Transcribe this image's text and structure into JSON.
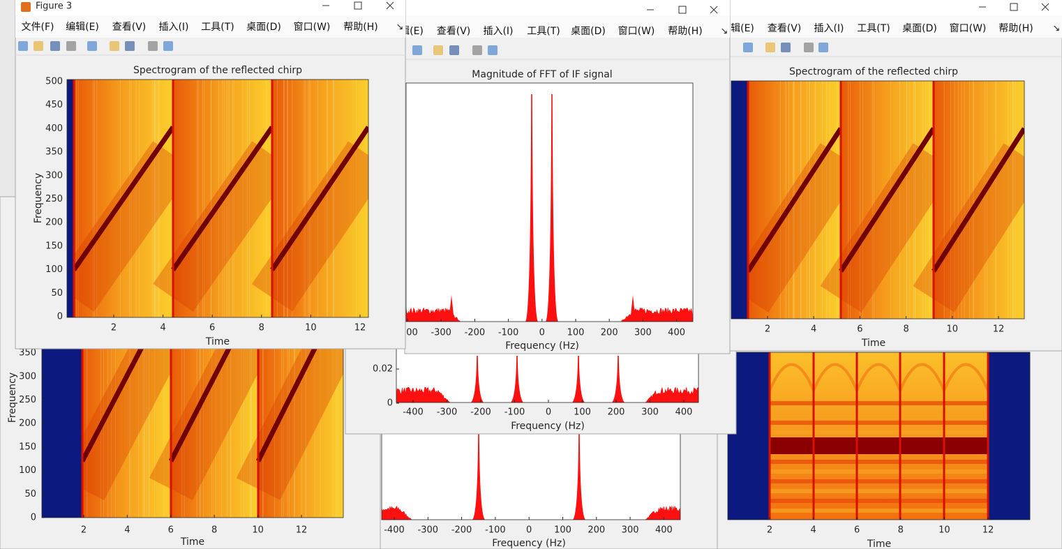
{
  "figures": [
    {
      "plot": {
        "xlabel": "Time",
        "ylabel": "Frequency",
        "xticks": [
          2,
          4,
          6,
          8,
          10,
          12
        ],
        "yticks": [
          0,
          50,
          100,
          150,
          200,
          250,
          300,
          350
        ]
      }
    },
    {
      "plot": {
        "xlabel": "Frequency (Hz)",
        "xticks": [
          -400,
          -300,
          -200,
          -100,
          0,
          100,
          200,
          300,
          400
        ]
      }
    },
    {
      "plot": {
        "xlabel": "Time",
        "xticks": [
          2,
          4,
          6,
          8,
          10,
          12
        ]
      }
    },
    {
      "plot": {
        "xlabel": "Frequency (Hz)",
        "xticks": [
          -400,
          -300,
          -200,
          -100,
          0,
          100,
          200,
          300,
          400
        ],
        "yticks": [
          0,
          0.02
        ]
      }
    },
    {
      "menu": [
        "编辑(E)",
        "查看(V)",
        "插入(I)",
        "工具(T)",
        "桌面(D)",
        "窗口(W)",
        "帮助(H)"
      ],
      "plot": {
        "title": "Spectrogram of the reflected chirp",
        "xlabel": "Time",
        "xticks": [
          2,
          4,
          6,
          8,
          10,
          12
        ]
      }
    },
    {
      "menu": [
        "编辑(E)",
        "查看(V)",
        "插入(I)",
        "工具(T)",
        "桌面(D)",
        "窗口(W)",
        "帮助(H)"
      ],
      "plot": {
        "title": "Magnitude of FFT of IF signal",
        "xlabel": "Frequency (Hz)",
        "xticks": [
          -400,
          -300,
          -200,
          -100,
          0,
          100,
          200,
          300,
          400
        ]
      }
    },
    {
      "title": "Figure 3",
      "menu": [
        "文件(F)",
        "编辑(E)",
        "查看(V)",
        "插入(I)",
        "工具(T)",
        "桌面(D)",
        "窗口(W)",
        "帮助(H)"
      ],
      "plot": {
        "title": "Spectrogram of the reflected chirp",
        "xlabel": "Time",
        "ylabel": "Frequency",
        "xticks": [
          2,
          4,
          6,
          8,
          10,
          12
        ],
        "yticks": [
          0,
          50,
          100,
          150,
          200,
          250,
          300,
          350,
          400,
          450,
          500
        ]
      }
    }
  ]
}
